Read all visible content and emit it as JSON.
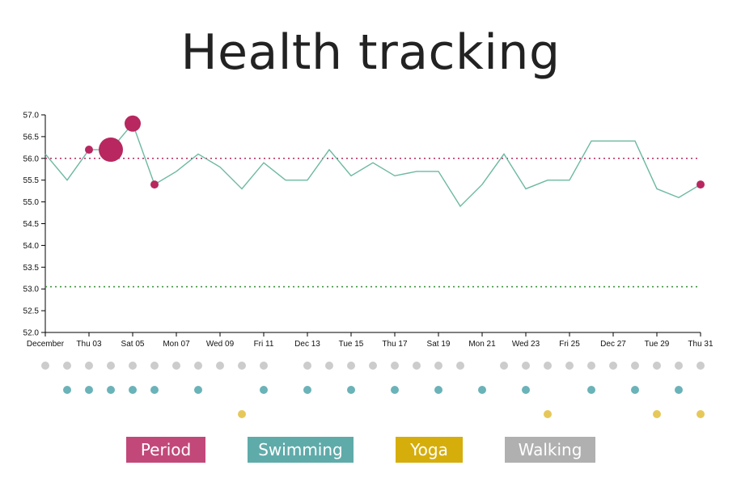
{
  "title": "Health tracking",
  "legend": {
    "period": {
      "label": "Period",
      "color": "#c2487a"
    },
    "swimming": {
      "label": "Swimming",
      "color": "#5fabaa"
    },
    "yoga": {
      "label": "Yoga",
      "color": "#d6ae0c"
    },
    "walking": {
      "label": "Walking",
      "color": "#b0b0b0"
    }
  },
  "colors": {
    "line": "#6cb8a2",
    "period_marker": "#b8275f",
    "threshold_upper": "#b8275f",
    "threshold_lower": "#2e8b2e",
    "activity_walking": "#cccccc",
    "activity_swimming": "#6ab3b8",
    "activity_yoga": "#e6c85a"
  },
  "chart_data": {
    "type": "line",
    "ylim": [
      52.0,
      57.0
    ],
    "yticks": [
      "52.0",
      "52.5",
      "53.0",
      "53.5",
      "54.0",
      "54.5",
      "55.0",
      "55.5",
      "56.0",
      "56.5",
      "57.0"
    ],
    "xticks": [
      {
        "day": 1,
        "label": "December"
      },
      {
        "day": 3,
        "label": "Thu 03"
      },
      {
        "day": 5,
        "label": "Sat 05"
      },
      {
        "day": 7,
        "label": "Mon 07"
      },
      {
        "day": 9,
        "label": "Wed 09"
      },
      {
        "day": 11,
        "label": "Fri 11"
      },
      {
        "day": 13,
        "label": "Dec 13"
      },
      {
        "day": 15,
        "label": "Tue 15"
      },
      {
        "day": 17,
        "label": "Thu 17"
      },
      {
        "day": 19,
        "label": "Sat 19"
      },
      {
        "day": 21,
        "label": "Mon 21"
      },
      {
        "day": 23,
        "label": "Wed 23"
      },
      {
        "day": 25,
        "label": "Fri 25"
      },
      {
        "day": 27,
        "label": "Dec 27"
      },
      {
        "day": 29,
        "label": "Tue 29"
      },
      {
        "day": 31,
        "label": "Thu 31"
      }
    ],
    "series": [
      {
        "x": [
          1,
          2,
          3,
          4,
          5,
          6,
          7,
          8,
          9,
          10,
          11,
          12,
          13,
          14,
          15,
          16,
          17,
          18,
          19,
          20,
          21,
          22,
          23,
          24,
          25,
          26,
          27,
          28,
          29,
          30,
          31
        ],
        "values": [
          56.1,
          55.5,
          56.2,
          56.2,
          56.8,
          55.4,
          55.7,
          56.1,
          55.8,
          55.3,
          55.9,
          55.5,
          55.5,
          56.2,
          55.6,
          55.9,
          55.6,
          55.7,
          55.7,
          54.9,
          55.4,
          56.1,
          55.3,
          55.5,
          55.5,
          56.4,
          56.4,
          56.4,
          55.3,
          55.1,
          55.4
        ]
      }
    ],
    "period_points": [
      {
        "day": 3,
        "value": 56.2,
        "size": "small"
      },
      {
        "day": 4,
        "value": 56.2,
        "size": "large"
      },
      {
        "day": 5,
        "value": 56.8,
        "size": "medium"
      },
      {
        "day": 6,
        "value": 55.4,
        "size": "small"
      },
      {
        "day": 31,
        "value": 55.4,
        "size": "small"
      }
    ],
    "reference_lines": [
      56.0,
      53.05
    ],
    "activities": {
      "walking": [
        1,
        2,
        3,
        4,
        5,
        6,
        7,
        8,
        9,
        10,
        11,
        13,
        14,
        15,
        16,
        17,
        18,
        19,
        20,
        22,
        23,
        24,
        25,
        26,
        27,
        28,
        29,
        30,
        31
      ],
      "swimming": [
        2,
        3,
        4,
        5,
        6,
        8,
        11,
        13,
        15,
        17,
        19,
        21,
        23,
        26,
        28,
        30
      ],
      "yoga": [
        10,
        24,
        29,
        31
      ]
    }
  }
}
